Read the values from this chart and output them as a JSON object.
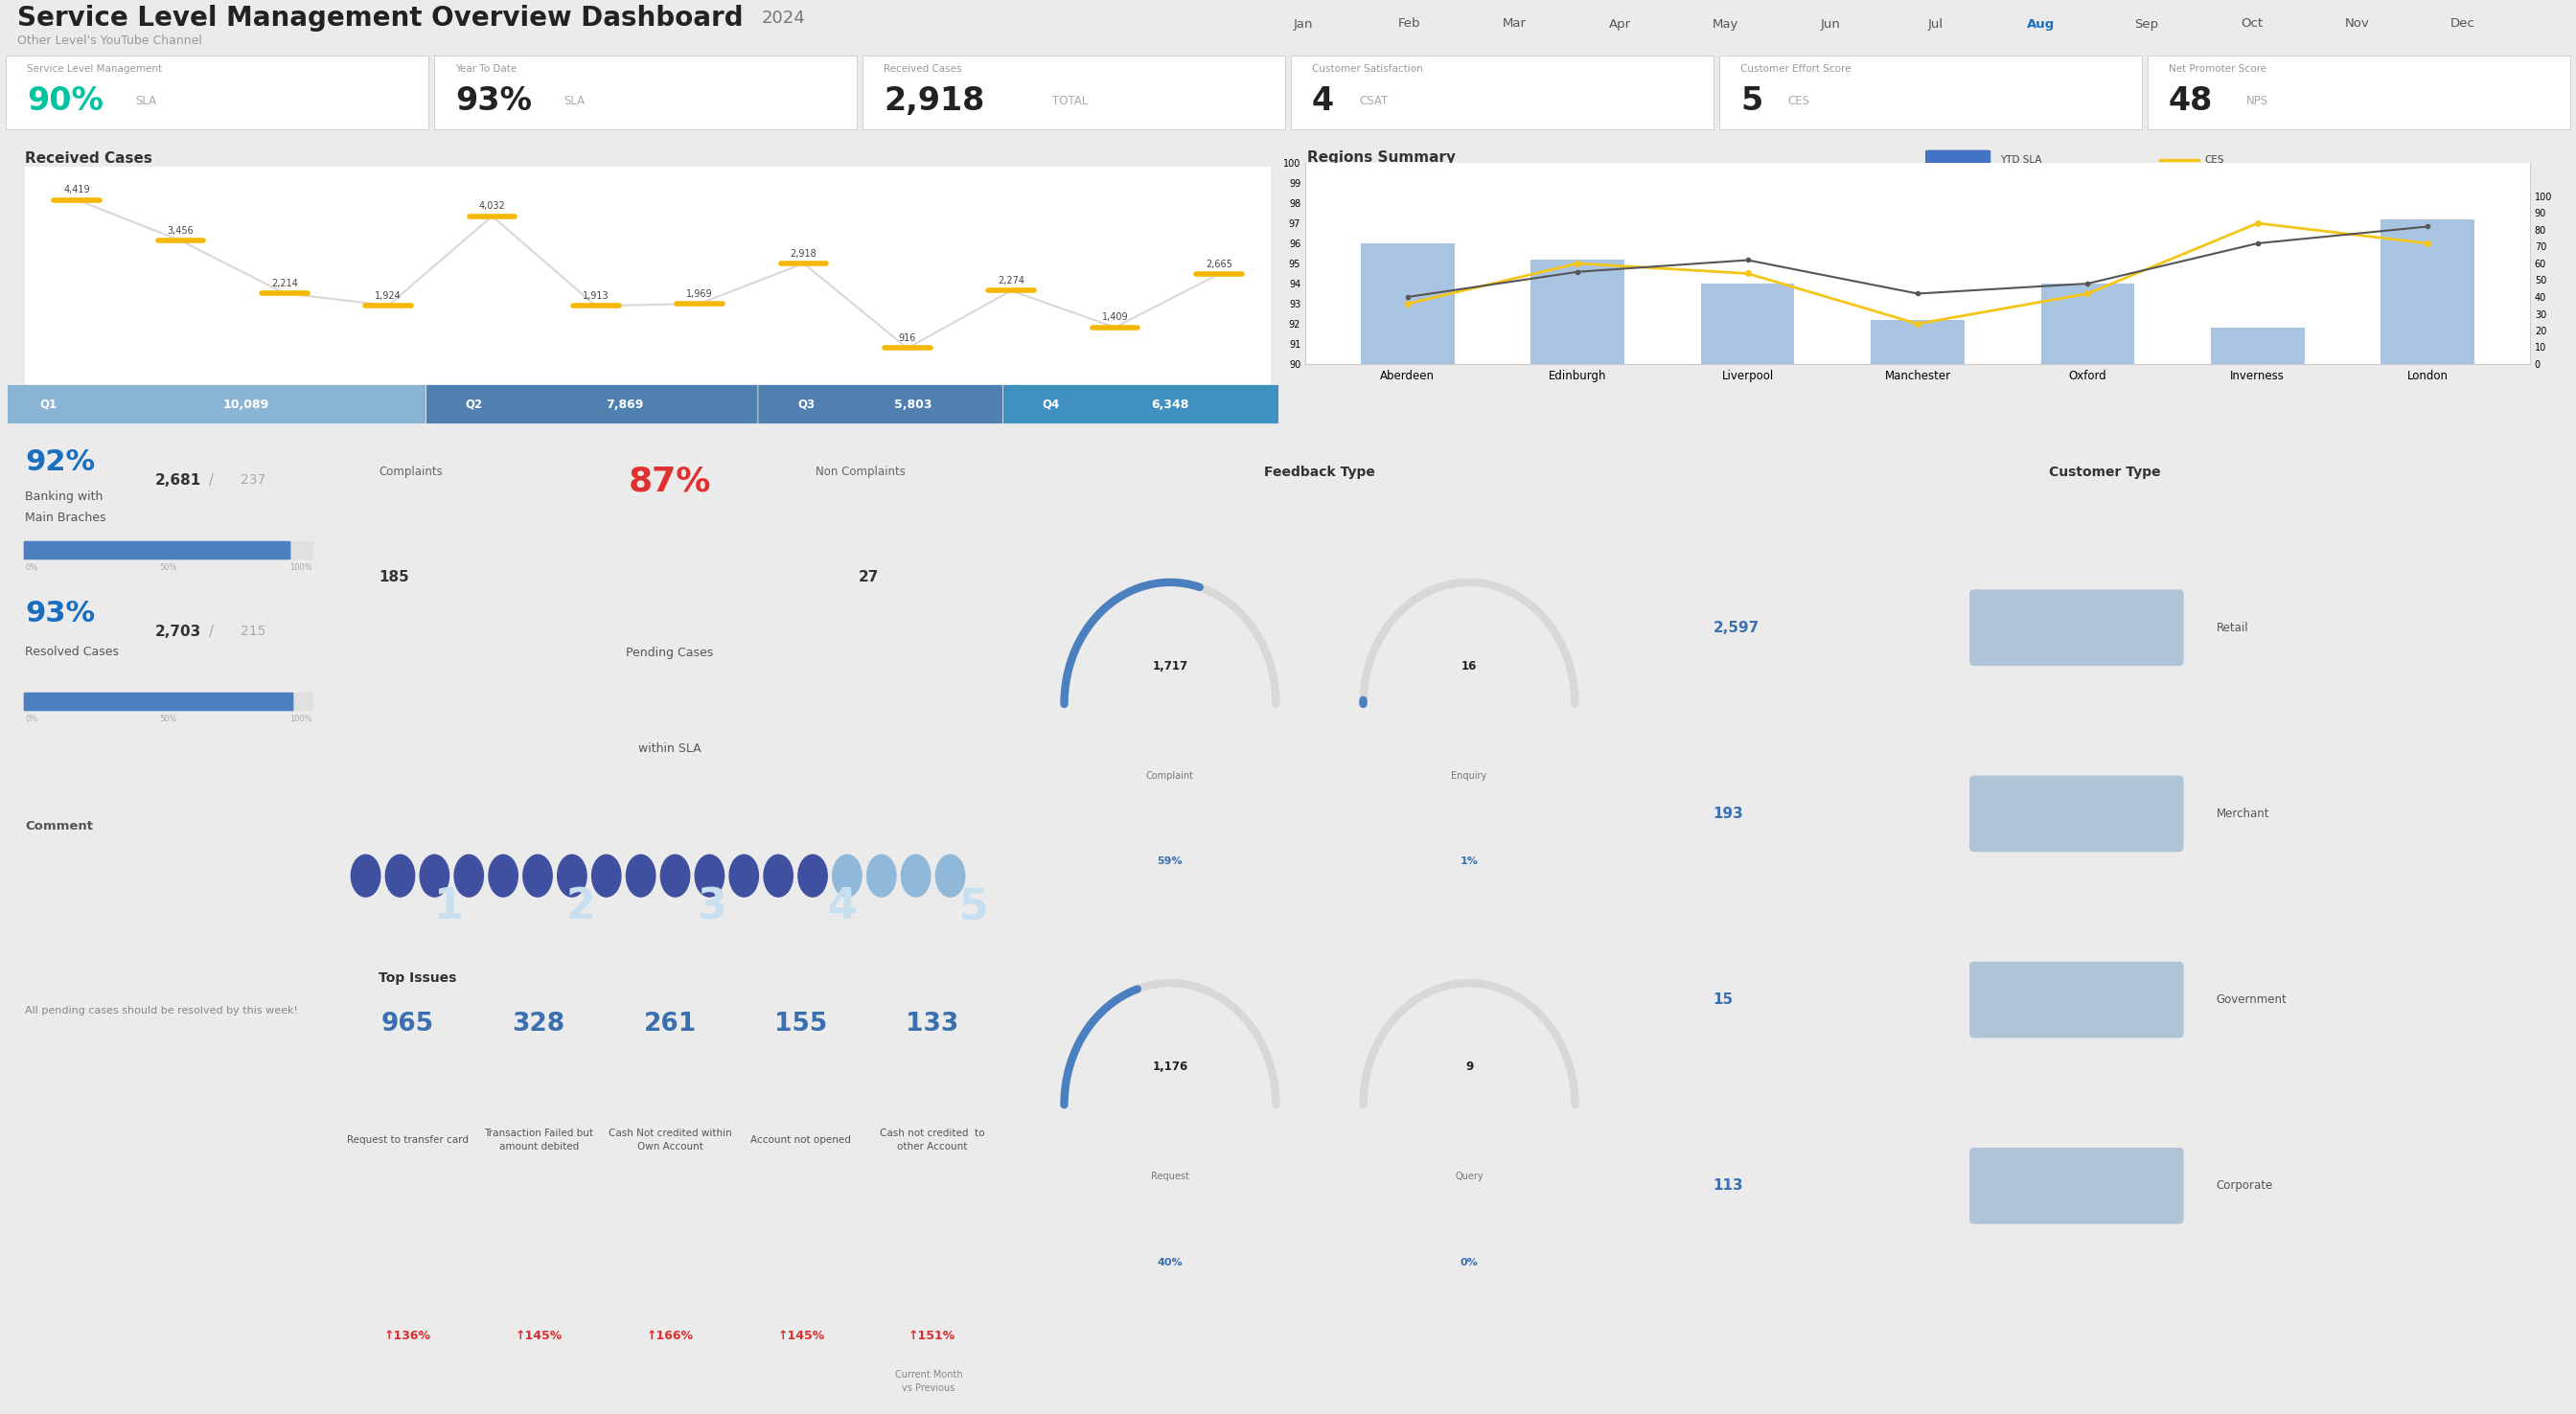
{
  "title": "Service Level Management Overview Dashboard",
  "title_year": "2024",
  "subtitle": "Other Level's YouTube Channel",
  "bg_color": "#ebebeb",
  "card_bg": "#ffffff",
  "months_nav": [
    "Jan",
    "Feb",
    "Mar",
    "Apr",
    "May",
    "Jun",
    "Jul",
    "Aug",
    "Sep",
    "Oct",
    "Nov",
    "Dec"
  ],
  "active_month": "Aug",
  "kpi_cards": [
    {
      "label": "Service Level Management",
      "value": "90%",
      "unit": "SLA",
      "val_color": "#00c4a0"
    },
    {
      "label": "Year To Date",
      "value": "93%",
      "unit": "SLA",
      "val_color": "#222222"
    },
    {
      "label": "Received Cases",
      "value": "2,918",
      "unit": "TOTAL",
      "val_color": "#222222"
    },
    {
      "label": "Customer Satisfaction",
      "value": "4",
      "unit": "CSAT",
      "val_color": "#222222"
    },
    {
      "label": "Customer Effort Score",
      "value": "5",
      "unit": "CES",
      "val_color": "#222222"
    },
    {
      "label": "Net Promoter Score",
      "value": "48",
      "unit": "NPS",
      "val_color": "#222222"
    }
  ],
  "received_cases_title": "Received Cases",
  "received_months": [
    "Jan",
    "Feb",
    "Mar",
    "Apr",
    "May",
    "Jun",
    "Jul",
    "Aug",
    "Sep",
    "Oct",
    "Nov",
    "Dec"
  ],
  "received_values": [
    4419,
    3456,
    2214,
    1924,
    4032,
    1913,
    1969,
    2918,
    916,
    2274,
    1409,
    2665
  ],
  "received_line_color": "#d8d8d8",
  "received_tick_color": "#f5b800",
  "quarterly_labels": [
    "Q1",
    "Q2",
    "Q3",
    "Q4"
  ],
  "quarterly_values": [
    10089,
    7869,
    5803,
    6348
  ],
  "quarterly_colors": [
    "#8ab4d4",
    "#5080b0",
    "#5080b0",
    "#4090c0"
  ],
  "regions_title": "Regions Summary",
  "regions": [
    "Aberdeen",
    "Edinburgh",
    "Liverpool",
    "Manchester",
    "Oxford",
    "Inverness",
    "London"
  ],
  "regions_bar_values": [
    60,
    52,
    40,
    22,
    40,
    18,
    72
  ],
  "regions_ytd_sla": [
    93.0,
    95.0,
    94.5,
    92.0,
    93.5,
    97.0,
    96.0
  ],
  "regions_ces": [
    40,
    55,
    62,
    42,
    48,
    72,
    82
  ],
  "regions_bar_color": "#a8c4e0",
  "ytd_sla_color": "#f5c518",
  "ces_line_color": "#555555",
  "banking_pct": "92%",
  "banking_label1": "Banking with",
  "banking_label2": "Main Braches",
  "banking_count": "2,681",
  "banking_sep": "/",
  "banking_total": "237",
  "banking_bar_pct": 0.92,
  "banking_bar_color": "#4a80bf",
  "resolved_pct": "93%",
  "resolved_label": "Resolved Cases",
  "resolved_count": "2,703",
  "resolved_sep": "/",
  "resolved_total": "215",
  "resolved_bar_pct": 0.93,
  "resolved_bar_color": "#4a80bf",
  "comment_title": "Comment",
  "comment_text": "All pending cases should be resolved by this week!",
  "complaints_label": "Complaints",
  "complaints_value": "185",
  "pending_pct": "87%",
  "pending_label_line1": "Pending Cases",
  "pending_label_line2": "within SLA",
  "pending_pct_color": "#e03030",
  "non_complaints_label": "Non Complaints",
  "non_complaints_value": "27",
  "dots_filled": 14,
  "dots_total": 18,
  "dot_filled_color": "#4050a0",
  "dot_empty_color": "#90b8d8",
  "feedback_title": "Feedback Type",
  "feedback_items": [
    {
      "label": "Complaint",
      "value": "1,717",
      "pct": "59%",
      "gauge_pct": 0.59
    },
    {
      "label": "Enquiry",
      "value": "16",
      "pct": "1%",
      "gauge_pct": 0.01
    },
    {
      "label": "Request",
      "value": "1,176",
      "pct": "40%",
      "gauge_pct": 0.4
    },
    {
      "label": "Query",
      "value": "9",
      "pct": "0%",
      "gauge_pct": 0.0
    }
  ],
  "gauge_bg_color": "#d8d8d8",
  "gauge_fill_color": "#4a80bf",
  "customer_type_title": "Customer Type",
  "customer_types": [
    {
      "label": "Retail",
      "value": "2,597"
    },
    {
      "label": "Merchant",
      "value": "193"
    },
    {
      "label": "Government",
      "value": "15"
    },
    {
      "label": "Corporate",
      "value": "113"
    }
  ],
  "customer_bar_color": "#b0c4d8",
  "customer_val_color": "#3a70af",
  "top_issues_title": "Top Issues",
  "top_issues": [
    {
      "rank": "1",
      "value": "965",
      "label": "Request to transfer card",
      "pct": "136%"
    },
    {
      "rank": "2",
      "value": "328",
      "label": "Transaction Failed but\namount debited",
      "pct": "145%"
    },
    {
      "rank": "3",
      "value": "261",
      "label": "Cash Not credited within\nOwn Account",
      "pct": "166%"
    },
    {
      "rank": "4",
      "value": "155",
      "label": "Account not opened",
      "pct": "145%"
    },
    {
      "rank": "5",
      "value": "133",
      "label": "Cash not credited  to\nother Account",
      "pct": "151%"
    }
  ],
  "issue_rank_color": "#c8dff0",
  "issue_val_color": "#3a70af",
  "issue_pct_color": "#d83030",
  "issue_note": "Current Month\nvs Previous"
}
